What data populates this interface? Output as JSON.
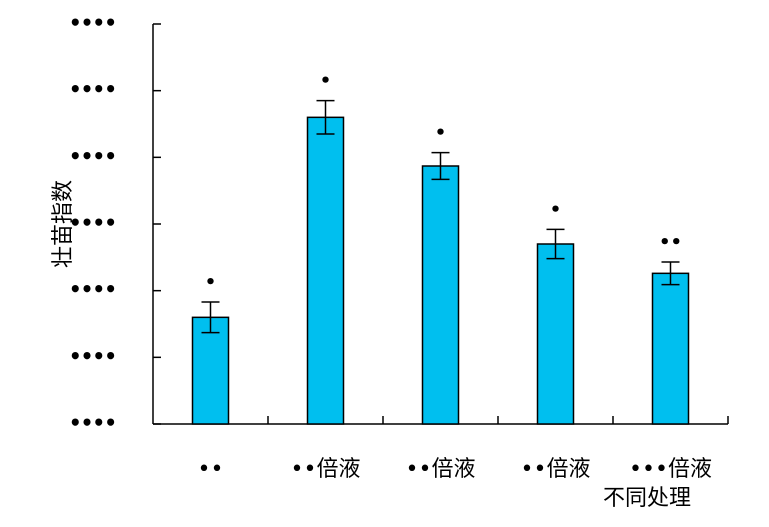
{
  "chart_data": {
    "type": "bar",
    "categories": [
      "••",
      "••倍液",
      "••倍液",
      "••倍液",
      "•••倍液"
    ],
    "values": [
      1.6,
      4.6,
      3.87,
      2.7,
      2.26
    ],
    "errors": [
      0.23,
      0.25,
      0.2,
      0.22,
      0.17
    ],
    "significance": [
      "•",
      "•",
      "•",
      "•",
      "••"
    ],
    "ytick_labels": [
      "••••",
      "••••",
      "••••",
      "••••",
      "••••",
      "••••",
      "••••"
    ],
    "ylim": [
      0,
      6
    ],
    "ylabel": "壮苗指数",
    "xlabel": "不同处理",
    "bar_color": "#00bfef",
    "grid": false,
    "legend": "none"
  }
}
